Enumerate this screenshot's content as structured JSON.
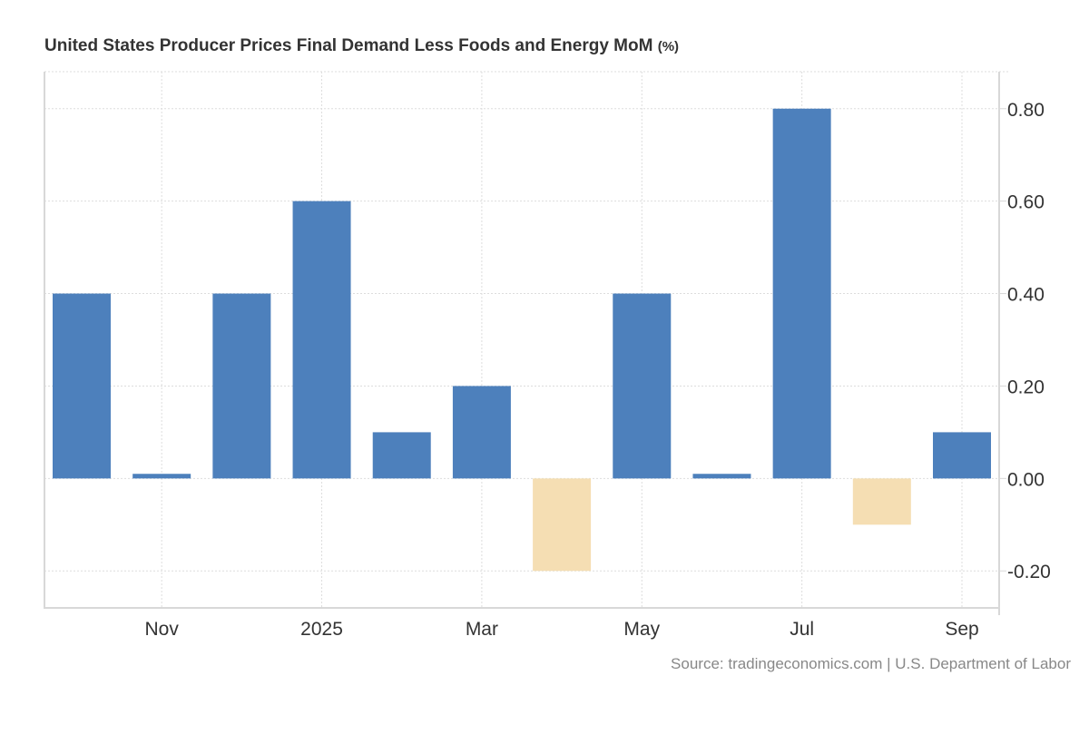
{
  "chart_data": {
    "type": "bar",
    "title": "United States Producer Prices Final Demand Less Foods and Energy MoM",
    "unit": "(%)",
    "source": "Source: tradingeconomics.com | U.S. Department of Labor",
    "categories": [
      "2024-10",
      "2024-11",
      "2024-12",
      "2025-01",
      "2025-02",
      "2025-03",
      "2025-04",
      "2025-05",
      "2025-06",
      "2025-07",
      "2025-08",
      "2025-09"
    ],
    "values": [
      0.4,
      0.01,
      0.4,
      0.6,
      0.1,
      0.2,
      -0.2,
      0.4,
      0.01,
      0.8,
      -0.1,
      0.1
    ],
    "x_tick_labels": [
      {
        "category": "2024-11",
        "label": "Nov"
      },
      {
        "category": "2025-01",
        "label": "2025"
      },
      {
        "category": "2025-03",
        "label": "Mar"
      },
      {
        "category": "2025-05",
        "label": "May"
      },
      {
        "category": "2025-07",
        "label": "Jul"
      },
      {
        "category": "2025-09",
        "label": "Sep"
      }
    ],
    "y_ticks": [
      0.8,
      0.6,
      0.4,
      0.2,
      0.0,
      -0.2
    ],
    "y_tick_labels": [
      "0.80",
      "0.60",
      "0.40",
      "0.20",
      "0.00",
      "-0.20"
    ],
    "ylim": [
      -0.28,
      0.88
    ],
    "y_axis_position": "right",
    "grid": true,
    "colors": {
      "positive": "#4d80bc",
      "negative": "#f5deb3",
      "grid": "#dddddd",
      "axis": "#d8d8d8"
    }
  }
}
